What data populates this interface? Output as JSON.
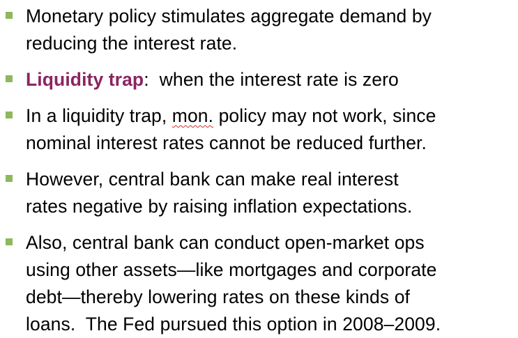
{
  "bullets": [
    {
      "lines": [
        "Monetary policy stimulates aggregate demand by",
        "reducing the interest rate."
      ]
    },
    {
      "term": "Liquidity trap",
      "rest": ":  when the interest rate is zero"
    },
    {
      "line1_before": "In a liquidity trap, ",
      "line1_abbr": "mon.",
      "line1_after": " policy may not work, since",
      "line2": "nominal interest rates cannot be reduced further."
    },
    {
      "lines": [
        "However, central bank can make real interest",
        "rates negative by raising inflation expectations."
      ]
    },
    {
      "lines": [
        "Also, central bank can conduct open-market ops",
        "using other assets—like mortgages and corporate",
        "debt—thereby lowering rates on these kinds of",
        "loans.  The Fed pursued this option in 2008–2009."
      ]
    }
  ],
  "colors": {
    "bullet_marker": "#8db85c",
    "term": "#8c2460",
    "spellcheck_underline": "#d62b2b",
    "text": "#000000"
  },
  "icons": {
    "bullet": "square-bullet-icon"
  }
}
